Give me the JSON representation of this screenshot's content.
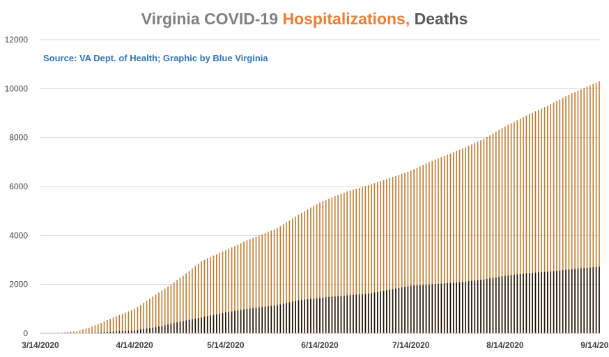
{
  "chart_data": {
    "type": "bar",
    "title_parts": [
      {
        "text": "Virginia COVID-19 ",
        "color": "#808080"
      },
      {
        "text": "Hospitalizations,",
        "color": "#ED7D31"
      },
      {
        "text": " Deaths",
        "color": "#595959"
      }
    ],
    "subtitle": "Source: VA Dept. of Health; Graphic by Blue Virginia",
    "subtitle_color": "#2E75B6",
    "x_start": "3/14/2020",
    "x_end": "9/14/2020",
    "x_tick_labels": [
      "3/14/2020",
      "4/14/2020",
      "5/14/2020",
      "6/14/2020",
      "7/14/2020",
      "8/14/2020",
      "9/14/2020"
    ],
    "y_ticks": [
      0,
      2000,
      4000,
      6000,
      8000,
      10000,
      12000
    ],
    "ylim": [
      0,
      12000
    ],
    "grid": true,
    "series": [
      {
        "name": "Hospitalizations",
        "color": "#C07A2C",
        "keypoints": [
          [
            "3/14/2020",
            0
          ],
          [
            "3/20/2020",
            25
          ],
          [
            "3/26/2020",
            90
          ],
          [
            "3/30/2020",
            230
          ],
          [
            "4/3/2020",
            430
          ],
          [
            "4/7/2020",
            650
          ],
          [
            "4/14/2020",
            1000
          ],
          [
            "4/20/2020",
            1500
          ],
          [
            "4/26/2020",
            2000
          ],
          [
            "5/1/2020",
            2450
          ],
          [
            "5/6/2020",
            2950
          ],
          [
            "5/14/2020",
            3400
          ],
          [
            "5/21/2020",
            3800
          ],
          [
            "5/31/2020",
            4300
          ],
          [
            "6/7/2020",
            4850
          ],
          [
            "6/14/2020",
            5350
          ],
          [
            "6/23/2020",
            5800
          ],
          [
            "6/30/2020",
            6050
          ],
          [
            "7/7/2020",
            6350
          ],
          [
            "7/14/2020",
            6650
          ],
          [
            "7/21/2020",
            7050
          ],
          [
            "7/31/2020",
            7550
          ],
          [
            "8/7/2020",
            7950
          ],
          [
            "8/14/2020",
            8450
          ],
          [
            "8/21/2020",
            8900
          ],
          [
            "8/28/2020",
            9300
          ],
          [
            "9/4/2020",
            9750
          ],
          [
            "9/14/2020",
            10300
          ]
        ]
      },
      {
        "name": "Deaths",
        "color": "#1A0E05",
        "keypoints": [
          [
            "3/14/2020",
            0
          ],
          [
            "3/28/2020",
            10
          ],
          [
            "4/3/2020",
            40
          ],
          [
            "4/7/2020",
            75
          ],
          [
            "4/14/2020",
            120
          ],
          [
            "4/21/2020",
            250
          ],
          [
            "4/28/2020",
            450
          ],
          [
            "5/6/2020",
            650
          ],
          [
            "5/14/2020",
            850
          ],
          [
            "5/21/2020",
            1000
          ],
          [
            "5/31/2020",
            1150
          ],
          [
            "6/7/2020",
            1350
          ],
          [
            "6/14/2020",
            1450
          ],
          [
            "6/23/2020",
            1550
          ],
          [
            "6/30/2020",
            1620
          ],
          [
            "7/7/2020",
            1780
          ],
          [
            "7/14/2020",
            1950
          ],
          [
            "7/21/2020",
            2000
          ],
          [
            "7/31/2020",
            2100
          ],
          [
            "8/7/2020",
            2200
          ],
          [
            "8/14/2020",
            2350
          ],
          [
            "8/21/2020",
            2450
          ],
          [
            "8/31/2020",
            2550
          ],
          [
            "9/7/2020",
            2650
          ],
          [
            "9/14/2020",
            2720
          ]
        ]
      }
    ]
  }
}
